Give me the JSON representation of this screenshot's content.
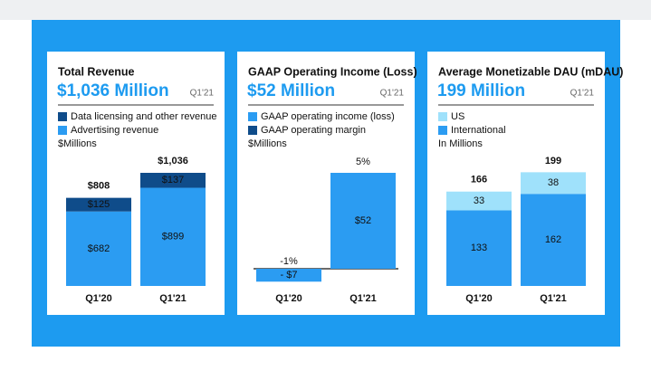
{
  "chart_data": [
    {
      "type": "bar",
      "stacked": true,
      "title": "Total Revenue",
      "subtitle": "$1,036 Million",
      "period": "Q1'21",
      "unit_label": "$Millions",
      "categories": [
        "Q1'20",
        "Q1'21"
      ],
      "series": [
        {
          "name": "Data licensing and other revenue",
          "color": "#0f4c8a",
          "values": [
            125,
            137
          ],
          "value_labels": [
            "$125",
            "$137"
          ]
        },
        {
          "name": "Advertising revenue",
          "color": "#2b9cf2",
          "values": [
            682,
            899
          ],
          "value_labels": [
            "$682",
            "$899"
          ]
        }
      ],
      "totals": [
        808,
        1036
      ],
      "total_labels": [
        "$808",
        "$1,036"
      ]
    },
    {
      "type": "bar",
      "title": "GAAP Operating Income (Loss)",
      "subtitle": "$52 Million",
      "period": "Q1'21",
      "unit_label": "$Millions",
      "categories": [
        "Q1'20",
        "Q1'21"
      ],
      "series": [
        {
          "name": "GAAP operating income (loss)",
          "color": "#2b9cf2",
          "values": [
            -7,
            52
          ],
          "value_labels": [
            "- $7",
            "$52"
          ]
        }
      ],
      "margin_name": "GAAP operating margin",
      "margin_color": "#0f4c8a",
      "margins": [
        -1,
        5
      ],
      "margin_labels": [
        "-1%",
        "5%"
      ]
    },
    {
      "type": "bar",
      "stacked": true,
      "title": "Average Monetizable DAU (mDAU)",
      "subtitle": "199 Million",
      "period": "Q1'21",
      "unit_label": "In Millions",
      "categories": [
        "Q1'20",
        "Q1'21"
      ],
      "series": [
        {
          "name": "US",
          "color": "#9fe1fb",
          "values": [
            33,
            38
          ]
        },
        {
          "name": "International",
          "color": "#2b9cf2",
          "values": [
            133,
            162
          ]
        }
      ],
      "totals": [
        166,
        199
      ]
    }
  ]
}
